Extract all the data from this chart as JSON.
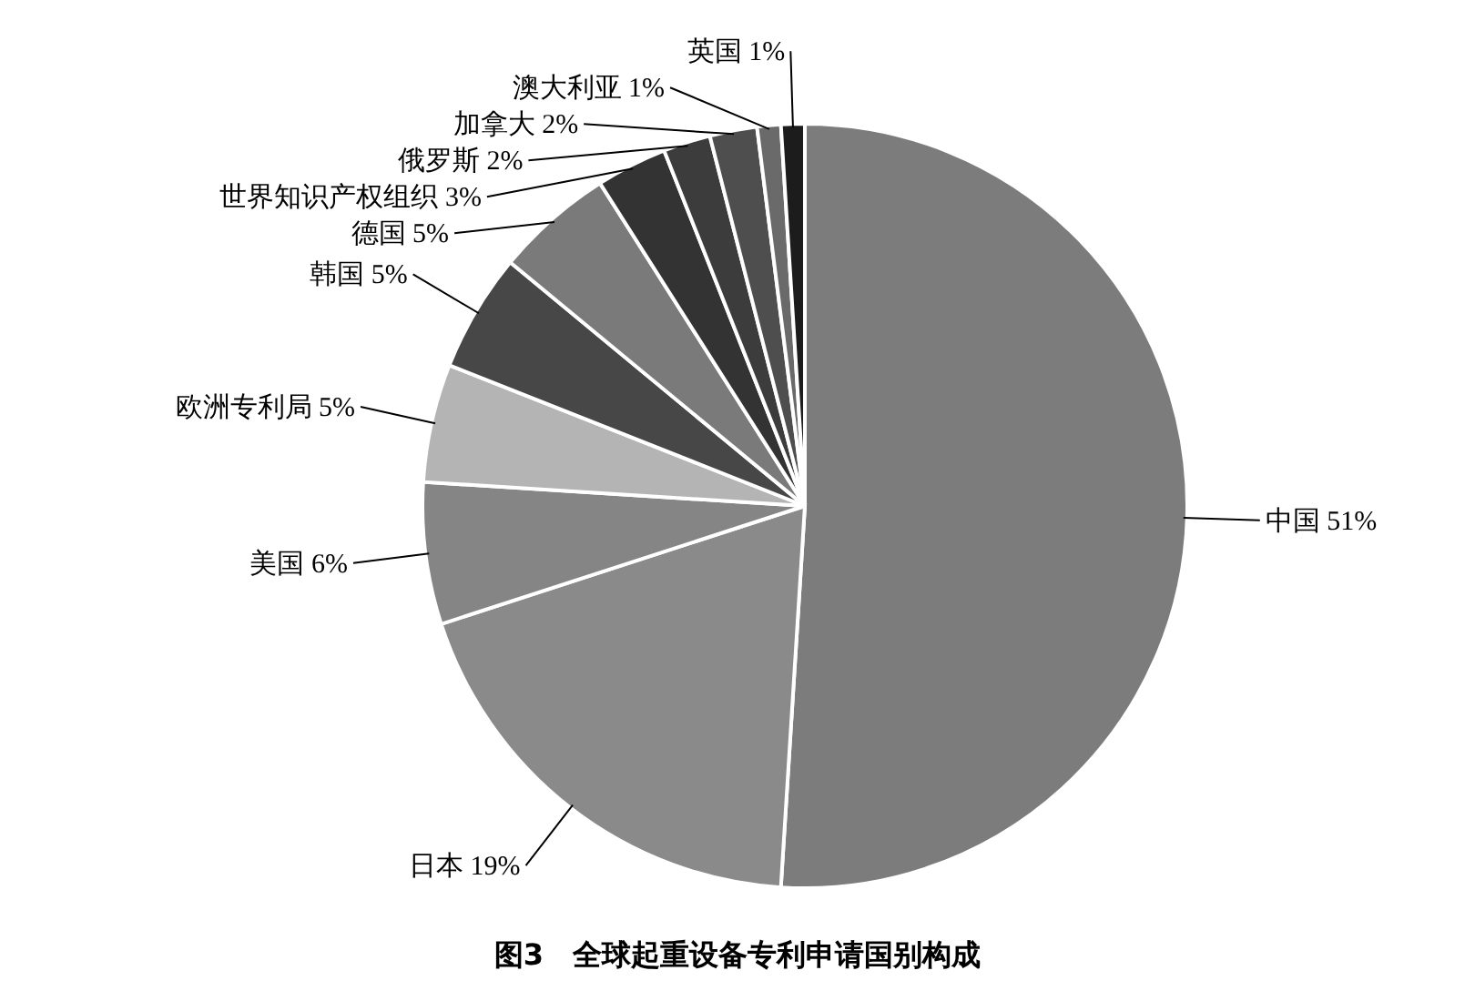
{
  "chart_data": {
    "type": "pie",
    "title": "图3　全球起重设备专利申请国别构成",
    "categories": [
      "中国",
      "日本",
      "美国",
      "欧洲专利局",
      "韩国",
      "德国",
      "世界知识产权组织",
      "俄罗斯",
      "加拿大",
      "澳大利亚",
      "英国"
    ],
    "values": [
      51,
      19,
      6,
      5,
      5,
      5,
      3,
      2,
      2,
      1,
      1
    ],
    "value_labels": [
      "51%",
      "19%",
      "6%",
      "5%",
      "5%",
      "5%",
      "3%",
      "2%",
      "2%",
      "1%",
      "1%"
    ],
    "colors": [
      "#7c7c7c",
      "#8a8a8a",
      "#858585",
      "#b4b4b4",
      "#474747",
      "#7a7a7a",
      "#333333",
      "#3c3c3c",
      "#4e4e4e",
      "#6a6a6a",
      "#1c1c1c"
    ]
  }
}
